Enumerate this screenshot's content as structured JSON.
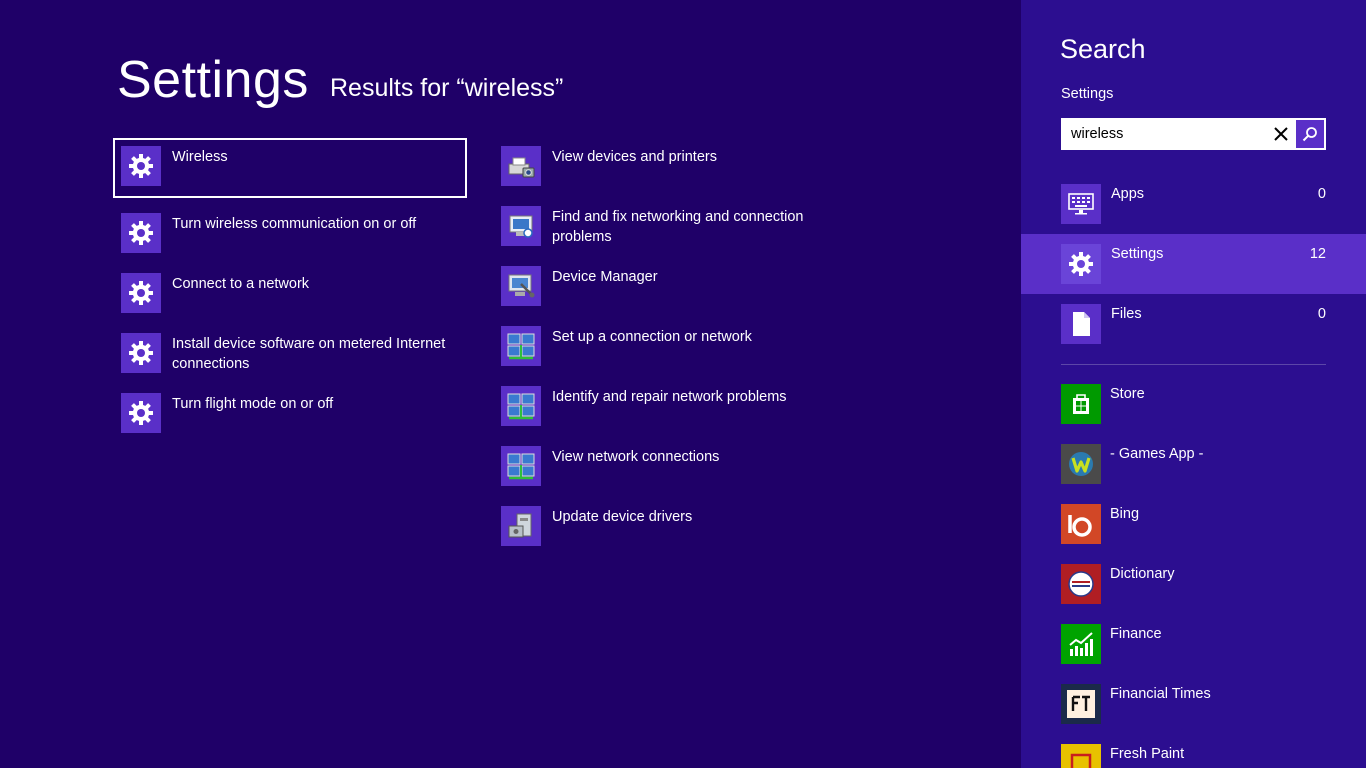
{
  "header": {
    "title": "Settings",
    "subtitle": "Results for “wireless”"
  },
  "results": {
    "left": [
      {
        "label": "Wireless",
        "icon": "gear-icon",
        "selected": true
      },
      {
        "label": "Turn wireless communication on or off",
        "icon": "gear-icon"
      },
      {
        "label": "Connect to a network",
        "icon": "gear-icon"
      },
      {
        "label": "Install device software on metered Internet connections",
        "icon": "gear-icon"
      },
      {
        "label": "Turn flight mode on or off",
        "icon": "gear-icon"
      }
    ],
    "right": [
      {
        "label": "View devices and printers",
        "icon": "printer-camera-icon"
      },
      {
        "label": "Find and fix networking and connection problems",
        "icon": "network-troubleshoot-icon"
      },
      {
        "label": "Device Manager",
        "icon": "device-manager-icon"
      },
      {
        "label": "Set up a connection or network",
        "icon": "network-icon"
      },
      {
        "label": "Identify and repair network problems",
        "icon": "network-icon"
      },
      {
        "label": "View network connections",
        "icon": "network-icon"
      },
      {
        "label": "Update device drivers",
        "icon": "device-drivers-icon"
      }
    ]
  },
  "search_pane": {
    "title": "Search",
    "scope": "Settings",
    "query": "wireless",
    "categories": [
      {
        "label": "Apps",
        "count": "0",
        "icon": "apps-icon"
      },
      {
        "label": "Settings",
        "count": "12",
        "icon": "gear-icon",
        "active": true
      },
      {
        "label": "Files",
        "count": "0",
        "icon": "file-icon"
      }
    ],
    "apps": [
      {
        "label": "Store",
        "icon": "store-icon",
        "color": "#009a00"
      },
      {
        "label": "- Games App -",
        "icon": "games-app-icon",
        "color": "#4a4a4a"
      },
      {
        "label": "Bing",
        "icon": "bing-icon",
        "color": "#d24726"
      },
      {
        "label": "Dictionary",
        "icon": "dictionary-icon",
        "color": "#b01e23"
      },
      {
        "label": "Finance",
        "icon": "finance-icon",
        "color": "#00a300"
      },
      {
        "label": "Financial Times",
        "icon": "financial-times-icon",
        "color": "#fff1e0"
      },
      {
        "label": "Fresh Paint",
        "icon": "fresh-paint-icon",
        "color": "#e8c100"
      }
    ]
  },
  "colors": {
    "background": "#1f0068",
    "pane": "#2c0e90",
    "accent": "#5a2fc8"
  }
}
